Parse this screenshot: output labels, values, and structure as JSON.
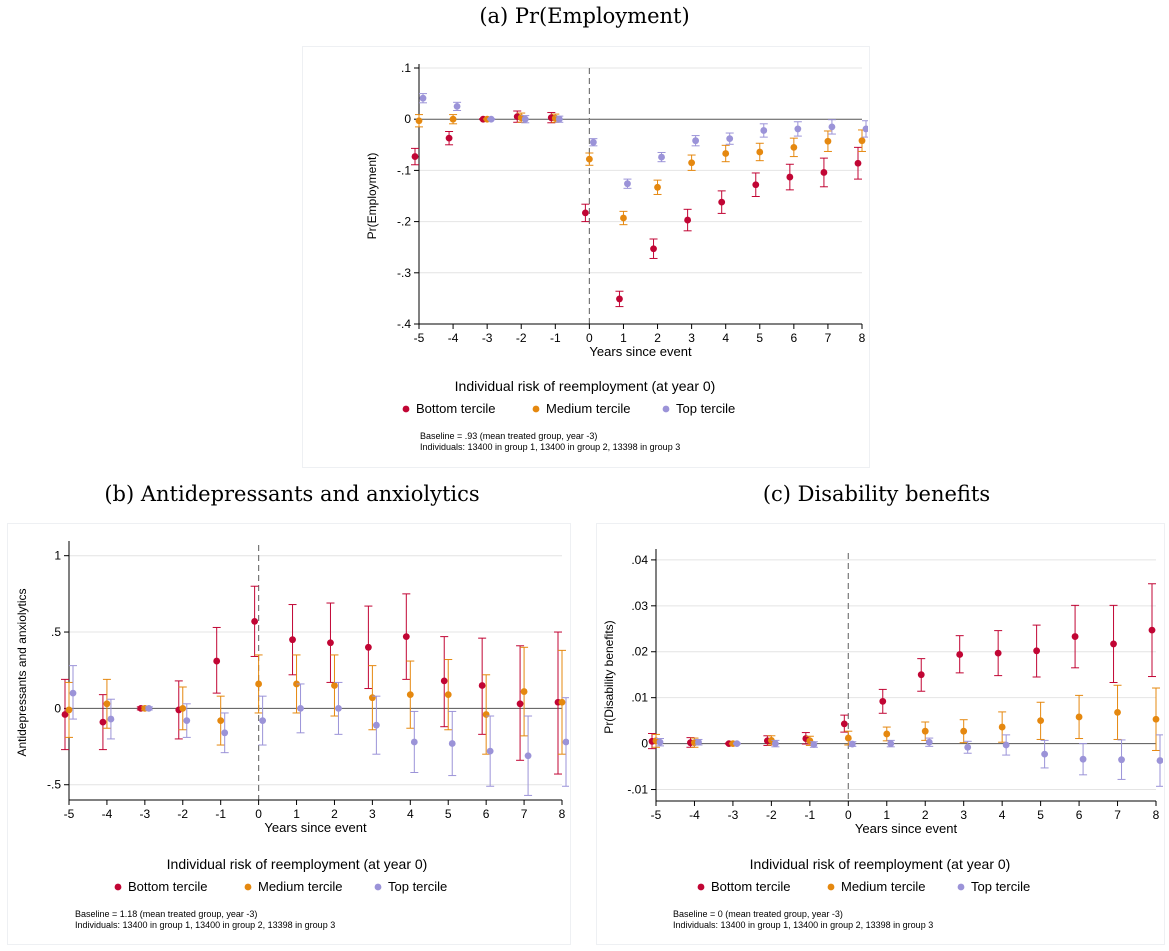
{
  "colors": {
    "bottom": "#c10534",
    "medium": "#e5880f",
    "top": "#9b93d8",
    "axis": "#000000",
    "grid": "#e4e4e4",
    "eventline": "#777777"
  },
  "legend_title": "Individual risk of reemployment (at year 0)",
  "series_names": [
    "Bottom tercile",
    "Medium tercile",
    "Top tercile"
  ],
  "xlabel": "Years since event",
  "panels": [
    {
      "title": "(a) Pr(Employment)",
      "ylabel": "Pr(Employment)",
      "note_line1": "Baseline = .93   (mean treated group, year -3)",
      "note_line2": "Individuals: 13400 in group 1, 13400 in group 2, 13398 in group 3"
    },
    {
      "title": "(b) Antidepressants and anxiolytics",
      "ylabel": "Antidepressants and anxiolytics",
      "note_line1": "Baseline = 1.18   (mean treated group, year -3)",
      "note_line2": "Individuals: 13400 in group 1, 13400 in group 2, 13398 in group 3"
    },
    {
      "title": "(c) Disability benefits",
      "ylabel": "Pr(Disability benefits)",
      "note_line1": "Baseline = 0   (mean treated group, year -3)",
      "note_line2": "Individuals: 13400 in group 1, 13400 in group 2, 13398 in group 3"
    }
  ],
  "chart_data": [
    {
      "type": "scatter",
      "title": "(a) Pr(Employment)",
      "xlabel": "Years since event",
      "ylabel": "Pr(Employment)",
      "x": [
        -5,
        -4,
        -3,
        -2,
        -1,
        0,
        1,
        2,
        3,
        4,
        5,
        6,
        7,
        8
      ],
      "xlim": [
        -5,
        8
      ],
      "ylim": [
        -0.4,
        0.1
      ],
      "yticks": [
        0.1,
        0,
        -0.1,
        -0.2,
        -0.3,
        -0.4
      ],
      "ytick_labels": [
        ".1",
        "0",
        "-.1",
        "-.2",
        "-.3",
        "-.4"
      ],
      "event_x": 0,
      "series": [
        {
          "name": "Bottom tercile",
          "values": [
            -0.073,
            -0.037,
            0,
            0.005,
            0.003,
            -0.183,
            -0.351,
            -0.253,
            -0.197,
            -0.162,
            -0.128,
            -0.113,
            -0.104,
            -0.086
          ],
          "ci_low": [
            -0.089,
            -0.05,
            -0.001,
            -0.006,
            -0.007,
            -0.2,
            -0.366,
            -0.272,
            -0.218,
            -0.184,
            -0.151,
            -0.138,
            -0.132,
            -0.117
          ],
          "ci_high": [
            -0.057,
            -0.024,
            0.001,
            0.016,
            0.013,
            -0.166,
            -0.336,
            -0.234,
            -0.176,
            -0.14,
            -0.105,
            -0.088,
            -0.076,
            -0.055
          ]
        },
        {
          "name": "Medium tercile",
          "values": [
            -0.003,
            0,
            0,
            0.003,
            0.002,
            -0.078,
            -0.193,
            -0.133,
            -0.085,
            -0.067,
            -0.064,
            -0.055,
            -0.043,
            -0.042
          ],
          "ci_low": [
            -0.015,
            -0.009,
            -0.001,
            -0.006,
            -0.006,
            -0.09,
            -0.206,
            -0.147,
            -0.1,
            -0.083,
            -0.081,
            -0.073,
            -0.063,
            -0.063
          ],
          "ci_high": [
            0.009,
            0.009,
            0.001,
            0.012,
            0.01,
            -0.066,
            -0.18,
            -0.119,
            -0.07,
            -0.051,
            -0.047,
            -0.037,
            -0.023,
            -0.021
          ]
        },
        {
          "name": "Top tercile",
          "values": [
            0.041,
            0.025,
            0,
            0,
            0,
            -0.045,
            -0.126,
            -0.074,
            -0.042,
            -0.038,
            -0.022,
            -0.019,
            -0.015,
            -0.019
          ],
          "ci_low": [
            0.032,
            0.017,
            -0.001,
            -0.007,
            -0.006,
            -0.052,
            -0.135,
            -0.083,
            -0.052,
            -0.049,
            -0.035,
            -0.033,
            -0.029,
            -0.035
          ],
          "ci_high": [
            0.05,
            0.033,
            0.001,
            0.007,
            0.006,
            -0.038,
            -0.117,
            -0.065,
            -0.032,
            -0.027,
            -0.009,
            -0.005,
            -0.001,
            -0.003
          ]
        }
      ]
    },
    {
      "type": "scatter",
      "title": "(b) Antidepressants and anxiolytics",
      "xlabel": "Years since event",
      "ylabel": "Antidepressants and anxiolytics",
      "x": [
        -5,
        -4,
        -3,
        -2,
        -1,
        0,
        1,
        2,
        3,
        4,
        5,
        6,
        7,
        8
      ],
      "xlim": [
        -5,
        8
      ],
      "ylim": [
        -0.6,
        1.07
      ],
      "yticks": [
        1,
        0.5,
        0,
        -0.5
      ],
      "ytick_labels": [
        "1",
        ".5",
        "0",
        "-.5"
      ],
      "event_x": 0,
      "series": [
        {
          "name": "Bottom tercile",
          "values": [
            -0.04,
            -0.09,
            0,
            -0.01,
            0.31,
            0.57,
            0.45,
            0.43,
            0.4,
            0.47,
            0.18,
            0.15,
            0.03,
            0.04
          ],
          "ci_low": [
            -0.27,
            -0.27,
            -0.01,
            -0.2,
            0.1,
            0.34,
            0.22,
            0.17,
            0.13,
            0.19,
            -0.12,
            -0.17,
            -0.34,
            -0.43
          ],
          "ci_high": [
            0.19,
            0.09,
            0.01,
            0.18,
            0.53,
            0.8,
            0.68,
            0.69,
            0.67,
            0.75,
            0.47,
            0.46,
            0.41,
            0.5
          ]
        },
        {
          "name": "Medium tercile",
          "values": [
            -0.01,
            0.03,
            0,
            0,
            -0.08,
            0.16,
            0.16,
            0.15,
            0.07,
            0.09,
            0.09,
            -0.04,
            0.11,
            0.04
          ],
          "ci_low": [
            -0.19,
            -0.13,
            -0.01,
            -0.14,
            -0.24,
            -0.03,
            -0.03,
            -0.05,
            -0.14,
            -0.13,
            -0.14,
            -0.3,
            -0.18,
            -0.3
          ],
          "ci_high": [
            0.17,
            0.19,
            0.01,
            0.14,
            0.08,
            0.35,
            0.35,
            0.35,
            0.28,
            0.31,
            0.32,
            0.22,
            0.4,
            0.38
          ]
        },
        {
          "name": "Top tercile",
          "values": [
            0.1,
            -0.07,
            0,
            -0.08,
            -0.16,
            -0.08,
            0,
            0,
            -0.11,
            -0.22,
            -0.23,
            -0.28,
            -0.31,
            -0.22
          ],
          "ci_low": [
            -0.07,
            -0.2,
            -0.01,
            -0.19,
            -0.29,
            -0.24,
            -0.16,
            -0.17,
            -0.3,
            -0.42,
            -0.44,
            -0.51,
            -0.57,
            -0.51
          ],
          "ci_high": [
            0.28,
            0.06,
            0.01,
            0.03,
            -0.03,
            0.08,
            0.16,
            0.17,
            0.08,
            -0.02,
            -0.02,
            -0.05,
            -0.05,
            0.07
          ]
        }
      ]
    },
    {
      "type": "scatter",
      "title": "(c) Disability benefits",
      "xlabel": "Years since event",
      "ylabel": "Pr(Disability benefits)",
      "x": [
        -5,
        -4,
        -3,
        -2,
        -1,
        0,
        1,
        2,
        3,
        4,
        5,
        6,
        7,
        8
      ],
      "xlim": [
        -5,
        8
      ],
      "ylim": [
        -0.0125,
        0.0415
      ],
      "yticks": [
        0.04,
        0.03,
        0.02,
        0.01,
        0,
        -0.01
      ],
      "ytick_labels": [
        ".04",
        ".03",
        ".02",
        ".01",
        "0",
        "-.01"
      ],
      "event_x": 0,
      "series": [
        {
          "name": "Bottom tercile",
          "values": [
            0.0005,
            0.0002,
            0,
            0.0006,
            0.0011,
            0.0043,
            0.0092,
            0.015,
            0.0194,
            0.0197,
            0.0202,
            0.0233,
            0.0217,
            0.0247
          ],
          "ci_low": [
            -0.0011,
            -0.0008,
            -0.0001,
            -0.0004,
            -0.0001,
            0.0025,
            0.0066,
            0.0114,
            0.0154,
            0.0148,
            0.0145,
            0.0165,
            0.0133,
            0.0146
          ],
          "ci_high": [
            0.0022,
            0.0013,
            0.0001,
            0.0017,
            0.0024,
            0.0062,
            0.0118,
            0.0185,
            0.0235,
            0.0246,
            0.0258,
            0.0301,
            0.0301,
            0.0348
          ]
        },
        {
          "name": "Medium tercile",
          "values": [
            0.0006,
            0.0002,
            0,
            0.0007,
            0.0006,
            0.0012,
            0.0021,
            0.0027,
            0.0027,
            0.0036,
            0.005,
            0.0058,
            0.0068,
            0.0053
          ],
          "ci_low": [
            -0.0008,
            -0.0008,
            -0.0001,
            -0.0003,
            -0.0004,
            -0.0003,
            0.0006,
            0.0007,
            0.0002,
            0.0003,
            0.0009,
            0.0011,
            0.0009,
            -0.0015
          ],
          "ci_high": [
            0.002,
            0.0012,
            0.0001,
            0.0017,
            0.0016,
            0.0027,
            0.0036,
            0.0047,
            0.0052,
            0.0069,
            0.009,
            0.0105,
            0.0127,
            0.0121
          ]
        },
        {
          "name": "Top tercile",
          "values": [
            0.0003,
            0.0003,
            0,
            0,
            -0.0002,
            -0.0001,
            0,
            0.0003,
            -0.0008,
            -0.0003,
            -0.0023,
            -0.0034,
            -0.0035,
            -0.0037
          ],
          "ci_low": [
            -0.0005,
            -0.0003,
            -0.0001,
            -0.0007,
            -0.0008,
            -0.0006,
            -0.0007,
            -0.0006,
            -0.0021,
            -0.0025,
            -0.0053,
            -0.0068,
            -0.0078,
            -0.0093
          ],
          "ci_high": [
            0.0011,
            0.0009,
            0.0001,
            0.0007,
            0.0004,
            0.0004,
            0.0007,
            0.0012,
            0.0005,
            0.0019,
            0.0007,
            0,
            0.0008,
            0.0019
          ]
        }
      ]
    }
  ]
}
